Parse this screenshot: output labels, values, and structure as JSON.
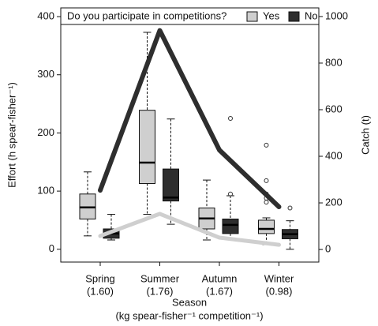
{
  "chart_data": {
    "type": "box",
    "legend_title": "Do you participate in competitions?",
    "categories": [
      "Spring",
      "Summer",
      "Autumn",
      "Winter"
    ],
    "category_notes": [
      "(1.60)",
      "(1.76)",
      "(1.67)",
      "(0.98)"
    ],
    "xlabel": "Season",
    "xlabel_note": "(kg spear-fisher⁻¹ competition⁻¹)",
    "ylabel": "Effort (h spear-fisher⁻¹)",
    "y2label": "Catch (t)",
    "ylim": [
      -22,
      415
    ],
    "yticks": [
      0,
      100,
      200,
      300,
      400
    ],
    "y2lim": [
      -54,
      1037
    ],
    "y2ticks": [
      0,
      200,
      400,
      600,
      800,
      1000
    ],
    "series": [
      {
        "name": "Yes",
        "color": "#cfcfcf",
        "boxes": [
          {
            "whislo": 23,
            "q1": 52,
            "med": 72,
            "q3": 95,
            "whishi": 133,
            "fliers": []
          },
          {
            "whislo": 60,
            "q1": 113,
            "med": 149,
            "q3": 239,
            "whishi": 373,
            "fliers": []
          },
          {
            "whislo": 16,
            "q1": 35,
            "med": 53,
            "q3": 71,
            "whishi": 119,
            "fliers": []
          },
          {
            "whislo": 8,
            "q1": 27,
            "med": 35,
            "q3": 50,
            "whishi": 54,
            "fliers": [
              179,
              118,
              95,
              88,
              81
            ]
          }
        ]
      },
      {
        "name": "No",
        "color": "#2e2e2e",
        "boxes": [
          {
            "whislo": 16,
            "q1": 19,
            "med": 27,
            "q3": 35,
            "whishi": 60,
            "fliers": []
          },
          {
            "whislo": 43,
            "q1": 83,
            "med": 89,
            "q3": 138,
            "whishi": 224,
            "fliers": []
          },
          {
            "whislo": 16,
            "q1": 27,
            "med": 42,
            "q3": 52,
            "whishi": 92,
            "fliers": [
              95,
              225
            ]
          },
          {
            "whislo": 0,
            "q1": 18,
            "med": 26,
            "q3": 34,
            "whishi": 49,
            "fliers": [
              71
            ]
          }
        ]
      }
    ],
    "lines": [
      {
        "name": "No",
        "color": "#2e2e2e",
        "axis": "y2",
        "values": [
          254,
          940,
          427,
          183
        ]
      },
      {
        "name": "Yes",
        "color": "#cfcfcf",
        "axis": "y2",
        "values": [
          58,
          153,
          51,
          20
        ]
      }
    ]
  }
}
